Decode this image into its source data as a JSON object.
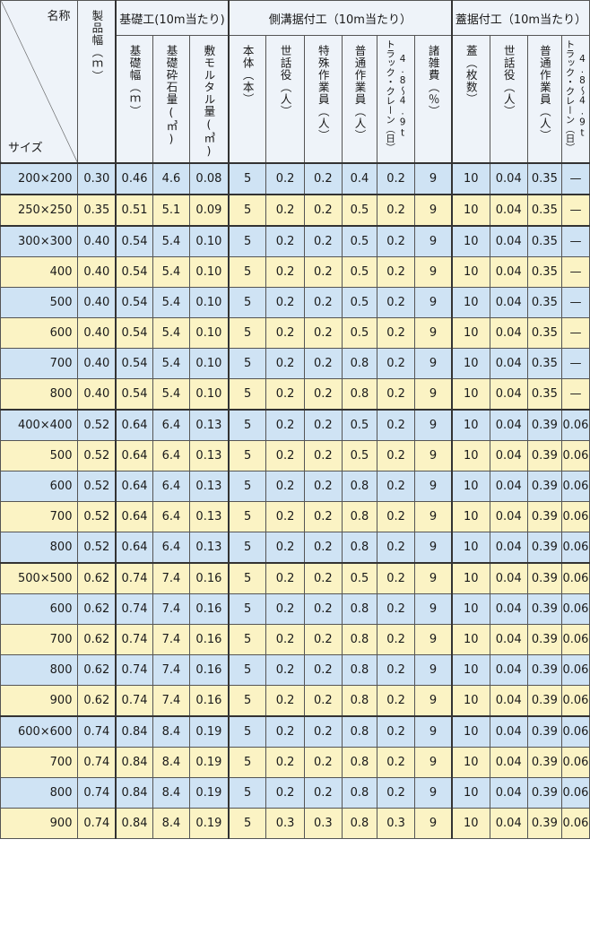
{
  "header": {
    "corner_name": "名称",
    "corner_size": "サイズ",
    "product_width": "製品幅（ｍ）",
    "group_kiso": "基礎工(10m当たり)",
    "group_sokko": "側溝据付工（10m当たり）",
    "group_futa": "蓋据付工（10m当たり）",
    "kiso_haba": "基礎幅（ｍ）",
    "kiso_saiseki": "基礎砕石量(㎥)",
    "shiki_mortar": "敷モルタル量(㎥)",
    "hontai": "本体（本）",
    "sewayaku": "世話役（人）",
    "tokushu": "特殊作業員（人）",
    "futsu": "普通作業員（人）",
    "crane_ton": "4.8〜4.9t",
    "crane_name": "トラック・クレーン（日）",
    "shozappi": "諸雑費（％）",
    "futa": "蓋（枚数）",
    "futa_sewayaku": "世話役（人）",
    "futa_futsu": "普通作業員（人）",
    "futa_crane_ton": "4.8〜4.9t",
    "futa_crane_name": "トラック・クレーン（日）"
  },
  "rows": [
    {
      "size": "200×200",
      "w": "0.30",
      "kh": "0.46",
      "ks": "4.6",
      "sm": "0.08",
      "ht": "5",
      "sw": "0.2",
      "tk": "0.2",
      "ft": "0.4",
      "cr": "0.2",
      "sz": "9",
      "fu": "10",
      "fs": "0.04",
      "ff": "0.35",
      "fc": "—"
    },
    {
      "size": "250×250",
      "w": "0.35",
      "kh": "0.51",
      "ks": "5.1",
      "sm": "0.09",
      "ht": "5",
      "sw": "0.2",
      "tk": "0.2",
      "ft": "0.5",
      "cr": "0.2",
      "sz": "9",
      "fu": "10",
      "fs": "0.04",
      "ff": "0.35",
      "fc": "—"
    },
    {
      "size": "300×300",
      "w": "0.40",
      "kh": "0.54",
      "ks": "5.4",
      "sm": "0.10",
      "ht": "5",
      "sw": "0.2",
      "tk": "0.2",
      "ft": "0.5",
      "cr": "0.2",
      "sz": "9",
      "fu": "10",
      "fs": "0.04",
      "ff": "0.35",
      "fc": "—"
    },
    {
      "size": "400",
      "w": "0.40",
      "kh": "0.54",
      "ks": "5.4",
      "sm": "0.10",
      "ht": "5",
      "sw": "0.2",
      "tk": "0.2",
      "ft": "0.5",
      "cr": "0.2",
      "sz": "9",
      "fu": "10",
      "fs": "0.04",
      "ff": "0.35",
      "fc": "—"
    },
    {
      "size": "500",
      "w": "0.40",
      "kh": "0.54",
      "ks": "5.4",
      "sm": "0.10",
      "ht": "5",
      "sw": "0.2",
      "tk": "0.2",
      "ft": "0.5",
      "cr": "0.2",
      "sz": "9",
      "fu": "10",
      "fs": "0.04",
      "ff": "0.35",
      "fc": "—"
    },
    {
      "size": "600",
      "w": "0.40",
      "kh": "0.54",
      "ks": "5.4",
      "sm": "0.10",
      "ht": "5",
      "sw": "0.2",
      "tk": "0.2",
      "ft": "0.5",
      "cr": "0.2",
      "sz": "9",
      "fu": "10",
      "fs": "0.04",
      "ff": "0.35",
      "fc": "—"
    },
    {
      "size": "700",
      "w": "0.40",
      "kh": "0.54",
      "ks": "5.4",
      "sm": "0.10",
      "ht": "5",
      "sw": "0.2",
      "tk": "0.2",
      "ft": "0.8",
      "cr": "0.2",
      "sz": "9",
      "fu": "10",
      "fs": "0.04",
      "ff": "0.35",
      "fc": "—"
    },
    {
      "size": "800",
      "w": "0.40",
      "kh": "0.54",
      "ks": "5.4",
      "sm": "0.10",
      "ht": "5",
      "sw": "0.2",
      "tk": "0.2",
      "ft": "0.8",
      "cr": "0.2",
      "sz": "9",
      "fu": "10",
      "fs": "0.04",
      "ff": "0.35",
      "fc": "—"
    },
    {
      "size": "400×400",
      "w": "0.52",
      "kh": "0.64",
      "ks": "6.4",
      "sm": "0.13",
      "ht": "5",
      "sw": "0.2",
      "tk": "0.2",
      "ft": "0.5",
      "cr": "0.2",
      "sz": "9",
      "fu": "10",
      "fs": "0.04",
      "ff": "0.39",
      "fc": "0.06"
    },
    {
      "size": "500",
      "w": "0.52",
      "kh": "0.64",
      "ks": "6.4",
      "sm": "0.13",
      "ht": "5",
      "sw": "0.2",
      "tk": "0.2",
      "ft": "0.5",
      "cr": "0.2",
      "sz": "9",
      "fu": "10",
      "fs": "0.04",
      "ff": "0.39",
      "fc": "0.06"
    },
    {
      "size": "600",
      "w": "0.52",
      "kh": "0.64",
      "ks": "6.4",
      "sm": "0.13",
      "ht": "5",
      "sw": "0.2",
      "tk": "0.2",
      "ft": "0.8",
      "cr": "0.2",
      "sz": "9",
      "fu": "10",
      "fs": "0.04",
      "ff": "0.39",
      "fc": "0.06"
    },
    {
      "size": "700",
      "w": "0.52",
      "kh": "0.64",
      "ks": "6.4",
      "sm": "0.13",
      "ht": "5",
      "sw": "0.2",
      "tk": "0.2",
      "ft": "0.8",
      "cr": "0.2",
      "sz": "9",
      "fu": "10",
      "fs": "0.04",
      "ff": "0.39",
      "fc": "0.06"
    },
    {
      "size": "800",
      "w": "0.52",
      "kh": "0.64",
      "ks": "6.4",
      "sm": "0.13",
      "ht": "5",
      "sw": "0.2",
      "tk": "0.2",
      "ft": "0.8",
      "cr": "0.2",
      "sz": "9",
      "fu": "10",
      "fs": "0.04",
      "ff": "0.39",
      "fc": "0.06"
    },
    {
      "size": "500×500",
      "w": "0.62",
      "kh": "0.74",
      "ks": "7.4",
      "sm": "0.16",
      "ht": "5",
      "sw": "0.2",
      "tk": "0.2",
      "ft": "0.5",
      "cr": "0.2",
      "sz": "9",
      "fu": "10",
      "fs": "0.04",
      "ff": "0.39",
      "fc": "0.06"
    },
    {
      "size": "600",
      "w": "0.62",
      "kh": "0.74",
      "ks": "7.4",
      "sm": "0.16",
      "ht": "5",
      "sw": "0.2",
      "tk": "0.2",
      "ft": "0.8",
      "cr": "0.2",
      "sz": "9",
      "fu": "10",
      "fs": "0.04",
      "ff": "0.39",
      "fc": "0.06"
    },
    {
      "size": "700",
      "w": "0.62",
      "kh": "0.74",
      "ks": "7.4",
      "sm": "0.16",
      "ht": "5",
      "sw": "0.2",
      "tk": "0.2",
      "ft": "0.8",
      "cr": "0.2",
      "sz": "9",
      "fu": "10",
      "fs": "0.04",
      "ff": "0.39",
      "fc": "0.06"
    },
    {
      "size": "800",
      "w": "0.62",
      "kh": "0.74",
      "ks": "7.4",
      "sm": "0.16",
      "ht": "5",
      "sw": "0.2",
      "tk": "0.2",
      "ft": "0.8",
      "cr": "0.2",
      "sz": "9",
      "fu": "10",
      "fs": "0.04",
      "ff": "0.39",
      "fc": "0.06"
    },
    {
      "size": "900",
      "w": "0.62",
      "kh": "0.74",
      "ks": "7.4",
      "sm": "0.16",
      "ht": "5",
      "sw": "0.2",
      "tk": "0.2",
      "ft": "0.8",
      "cr": "0.2",
      "sz": "9",
      "fu": "10",
      "fs": "0.04",
      "ff": "0.39",
      "fc": "0.06"
    },
    {
      "size": "600×600",
      "w": "0.74",
      "kh": "0.84",
      "ks": "8.4",
      "sm": "0.19",
      "ht": "5",
      "sw": "0.2",
      "tk": "0.2",
      "ft": "0.8",
      "cr": "0.2",
      "sz": "9",
      "fu": "10",
      "fs": "0.04",
      "ff": "0.39",
      "fc": "0.06"
    },
    {
      "size": "700",
      "w": "0.74",
      "kh": "0.84",
      "ks": "8.4",
      "sm": "0.19",
      "ht": "5",
      "sw": "0.2",
      "tk": "0.2",
      "ft": "0.8",
      "cr": "0.2",
      "sz": "9",
      "fu": "10",
      "fs": "0.04",
      "ff": "0.39",
      "fc": "0.06"
    },
    {
      "size": "800",
      "w": "0.74",
      "kh": "0.84",
      "ks": "8.4",
      "sm": "0.19",
      "ht": "5",
      "sw": "0.2",
      "tk": "0.2",
      "ft": "0.8",
      "cr": "0.2",
      "sz": "9",
      "fu": "10",
      "fs": "0.04",
      "ff": "0.39",
      "fc": "0.06"
    },
    {
      "size": "900",
      "w": "0.74",
      "kh": "0.84",
      "ks": "8.4",
      "sm": "0.19",
      "ht": "5",
      "sw": "0.3",
      "tk": "0.3",
      "ft": "0.8",
      "cr": "0.3",
      "sz": "9",
      "fu": "10",
      "fs": "0.04",
      "ff": "0.39",
      "fc": "0.06"
    }
  ],
  "groupStarts": [
    0,
    1,
    2,
    8,
    13,
    18
  ]
}
